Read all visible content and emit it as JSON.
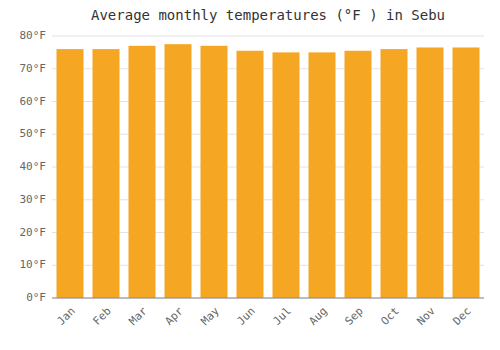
{
  "chart_data": {
    "type": "bar",
    "title": "Average monthly temperatures (°F ) in Sebu",
    "categories": [
      "Jan",
      "Feb",
      "Mar",
      "Apr",
      "May",
      "Jun",
      "Jul",
      "Aug",
      "Sep",
      "Oct",
      "Nov",
      "Dec"
    ],
    "values": [
      76,
      76,
      77,
      77.5,
      77,
      75.5,
      75,
      75,
      75.5,
      76,
      76.5,
      76.5
    ],
    "color": "#F5A623",
    "ylim": [
      0,
      80
    ],
    "yticks": [
      {
        "value": 0,
        "label": "0°F"
      },
      {
        "value": 10,
        "label": "10°F"
      },
      {
        "value": 20,
        "label": "20°F"
      },
      {
        "value": 30,
        "label": "30°F"
      },
      {
        "value": 40,
        "label": "40°F"
      },
      {
        "value": 50,
        "label": "50°F"
      },
      {
        "value": 60,
        "label": "60°F"
      },
      {
        "value": 70,
        "label": "70°F"
      },
      {
        "value": 80,
        "label": "80°F"
      }
    ],
    "grid": true
  }
}
